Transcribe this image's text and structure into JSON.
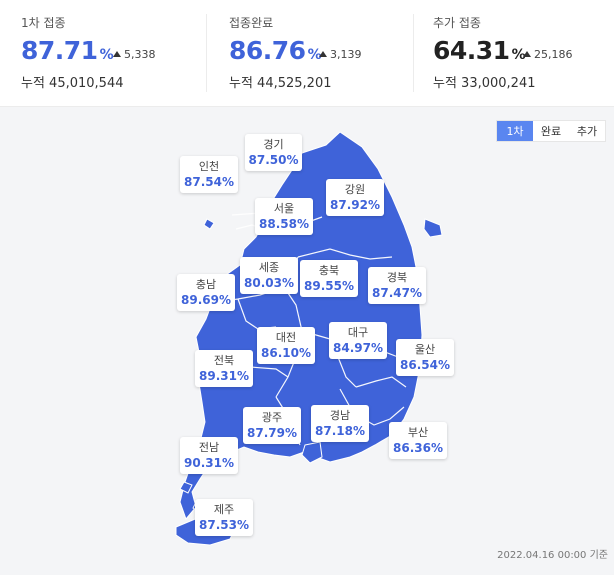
{
  "stats": [
    {
      "label": "1차 접종",
      "percent": "87.71",
      "unit": "%",
      "delta": "5,338",
      "cumulative": "누적 45,010,544",
      "color": "#3f63d9"
    },
    {
      "label": "접종완료",
      "percent": "86.76",
      "unit": "%",
      "delta": "3,139",
      "cumulative": "누적 44,525,201",
      "color": "#3f63d9"
    },
    {
      "label": "추가 접종",
      "percent": "64.31",
      "unit": "%",
      "delta": "25,186",
      "cumulative": "누적 33,000,241",
      "color": "#222222"
    }
  ],
  "tabs": [
    "1차",
    "완료",
    "추가"
  ],
  "active_tab": "1차",
  "regions": [
    {
      "name": "경기",
      "value": "87.50%"
    },
    {
      "name": "인천",
      "value": "87.54%"
    },
    {
      "name": "강원",
      "value": "87.92%"
    },
    {
      "name": "서울",
      "value": "88.58%"
    },
    {
      "name": "충남",
      "value": "89.69%"
    },
    {
      "name": "세종",
      "value": "80.03%"
    },
    {
      "name": "충북",
      "value": "89.55%"
    },
    {
      "name": "경북",
      "value": "87.47%"
    },
    {
      "name": "대구",
      "value": "84.97%"
    },
    {
      "name": "대전",
      "value": "86.10%"
    },
    {
      "name": "전북",
      "value": "89.31%"
    },
    {
      "name": "울산",
      "value": "86.54%"
    },
    {
      "name": "광주",
      "value": "87.79%"
    },
    {
      "name": "경남",
      "value": "87.18%"
    },
    {
      "name": "부산",
      "value": "86.36%"
    },
    {
      "name": "전남",
      "value": "90.31%"
    },
    {
      "name": "제주",
      "value": "87.53%"
    }
  ],
  "map_color": "#3f63d9",
  "footer": "2022.04.16 00:00 기준"
}
